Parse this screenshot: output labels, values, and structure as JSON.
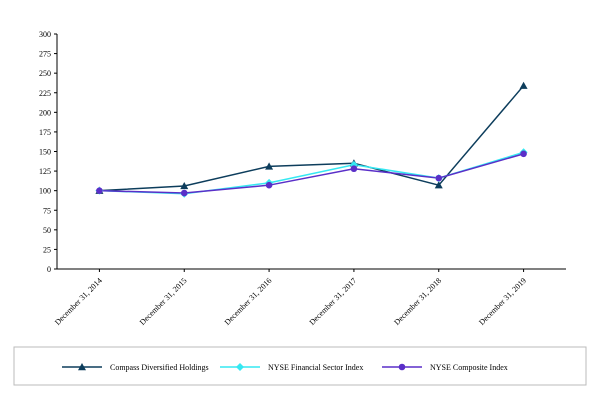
{
  "chart_data": {
    "type": "line",
    "categories": [
      "December 31, 2014",
      "December 31, 2015",
      "December 31, 2016",
      "December 31, 2017",
      "December 31, 2018",
      "December 31, 2019"
    ],
    "series": [
      {
        "name": "Compass Diversified Holdings",
        "color": "#0d3d5c",
        "marker": "triangle",
        "values": [
          100,
          106,
          131,
          135,
          107,
          234
        ]
      },
      {
        "name": "NYSE Financial Sector Index",
        "color": "#35e8f2",
        "marker": "diamond",
        "values": [
          100,
          96,
          110,
          133,
          116,
          149
        ]
      },
      {
        "name": "NYSE Composite Index",
        "color": "#5a2fc8",
        "marker": "circle",
        "values": [
          100,
          97,
          107,
          128,
          116,
          147
        ]
      }
    ],
    "ylim": [
      0,
      300
    ],
    "yticks": [
      0,
      25,
      50,
      75,
      100,
      125,
      150,
      175,
      200,
      225,
      250,
      275,
      300
    ],
    "grid": false,
    "legend": "bottom"
  }
}
